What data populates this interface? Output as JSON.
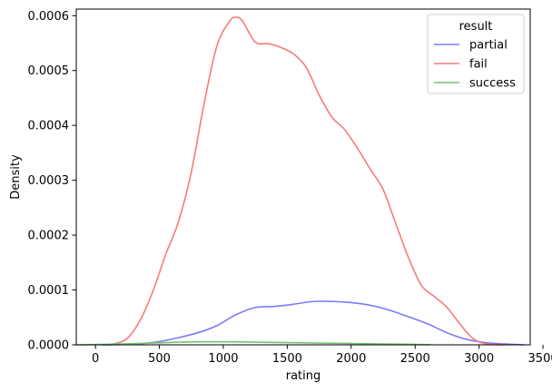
{
  "chart_data": {
    "type": "line",
    "xlabel": "rating",
    "ylabel": "Density",
    "xlim": [
      -150,
      3400
    ],
    "ylim": [
      0,
      0.000612
    ],
    "xticks": [
      0,
      500,
      1000,
      1500,
      2000,
      2500,
      3000,
      3500
    ],
    "yticks": [
      0.0,
      0.0001,
      0.0002,
      0.0003,
      0.0004,
      0.0005,
      0.0006
    ],
    "ytick_labels": [
      "0.0000",
      "0.0001",
      "0.0002",
      "0.0003",
      "0.0004",
      "0.0005",
      "0.0006"
    ],
    "grid": false,
    "legend": {
      "title": "result",
      "placement": "top-right"
    },
    "series": [
      {
        "name": "partial",
        "color": "#7b7bf7",
        "x": [
          50,
          200,
          350,
          500,
          650,
          800,
          950,
          1100,
          1250,
          1400,
          1550,
          1700,
          1850,
          2000,
          2150,
          2300,
          2450,
          2600,
          2750,
          2900,
          3050,
          3200,
          3350
        ],
        "y": [
          0,
          5e-07,
          2e-06,
          6e-06,
          1.3e-05,
          2.2e-05,
          3.5e-05,
          5.5e-05,
          6.8e-05,
          7e-05,
          7.4e-05,
          7.9e-05,
          7.9e-05,
          7.7e-05,
          7.2e-05,
          6.3e-05,
          5.1e-05,
          3.8e-05,
          2.2e-05,
          1e-05,
          4e-06,
          1.5e-06,
          0
        ]
      },
      {
        "name": "fail",
        "color": "#f77b7b",
        "x": [
          50,
          150,
          250,
          350,
          450,
          550,
          650,
          750,
          850,
          950,
          1050,
          1100,
          1150,
          1250,
          1350,
          1450,
          1550,
          1650,
          1750,
          1850,
          1950,
          2050,
          2150,
          2250,
          2350,
          2450,
          2550,
          2650,
          2750,
          2850,
          2950,
          3050,
          3200
        ],
        "y": [
          0,
          2e-06,
          1.2e-05,
          4.5e-05,
          9.8e-05,
          0.000165,
          0.000225,
          0.000315,
          0.00044,
          0.000545,
          0.00059,
          0.000597,
          0.00059,
          0.000552,
          0.000549,
          0.000542,
          0.00053,
          0.000505,
          0.000455,
          0.000415,
          0.000392,
          0.000358,
          0.00032,
          0.000283,
          0.00022,
          0.000158,
          0.000108,
          8.8e-05,
          6.8e-05,
          3.8e-05,
          1.2e-05,
          2e-06,
          0
        ]
      },
      {
        "name": "success",
        "color": "#74c274",
        "x": [
          -150,
          0,
          150,
          300,
          450,
          600,
          750,
          900,
          1050,
          1200,
          1350,
          1500,
          1650,
          1800,
          1950,
          2100,
          2250,
          2400,
          2550,
          2620
        ],
        "y": [
          0,
          5e-07,
          1.2e-06,
          2.2e-06,
          3.3e-06,
          4.4e-06,
          5.2e-06,
          5.5e-06,
          5.4e-06,
          5e-06,
          4.5e-06,
          4e-06,
          3.5e-06,
          3e-06,
          2.6e-06,
          2.1e-06,
          1.6e-06,
          1.1e-06,
          6e-07,
          4e-07
        ]
      }
    ]
  }
}
